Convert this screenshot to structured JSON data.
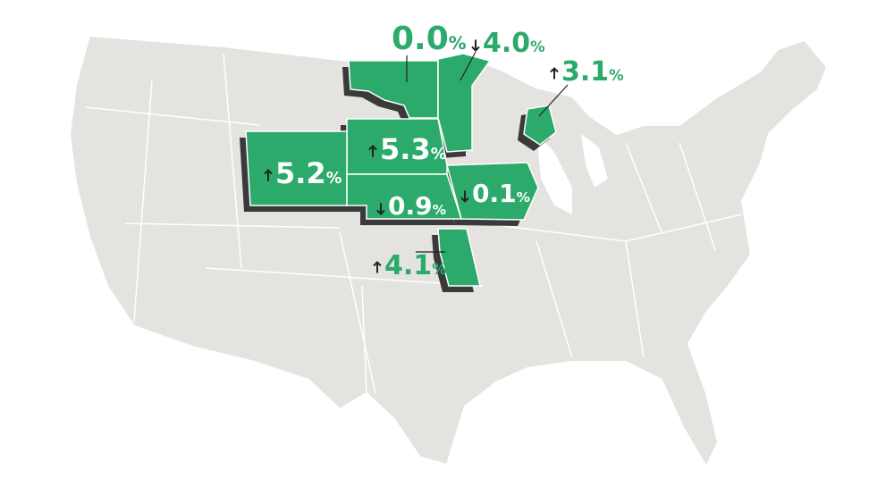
{
  "map": {
    "regions": [
      {
        "value": "0.0",
        "unit": "%",
        "arrow": "none"
      },
      {
        "value": "4.0",
        "unit": "%",
        "arrow": "down"
      },
      {
        "value": "3.1",
        "unit": "%",
        "arrow": "up"
      },
      {
        "value": "5.3",
        "unit": "%",
        "arrow": "up"
      },
      {
        "value": "5.2",
        "unit": "%",
        "arrow": "up"
      },
      {
        "value": "0.9",
        "unit": "%",
        "arrow": "down"
      },
      {
        "value": "0.1",
        "unit": "%",
        "arrow": "down"
      },
      {
        "value": "4.1",
        "unit": "%",
        "arrow": "up"
      }
    ]
  }
}
